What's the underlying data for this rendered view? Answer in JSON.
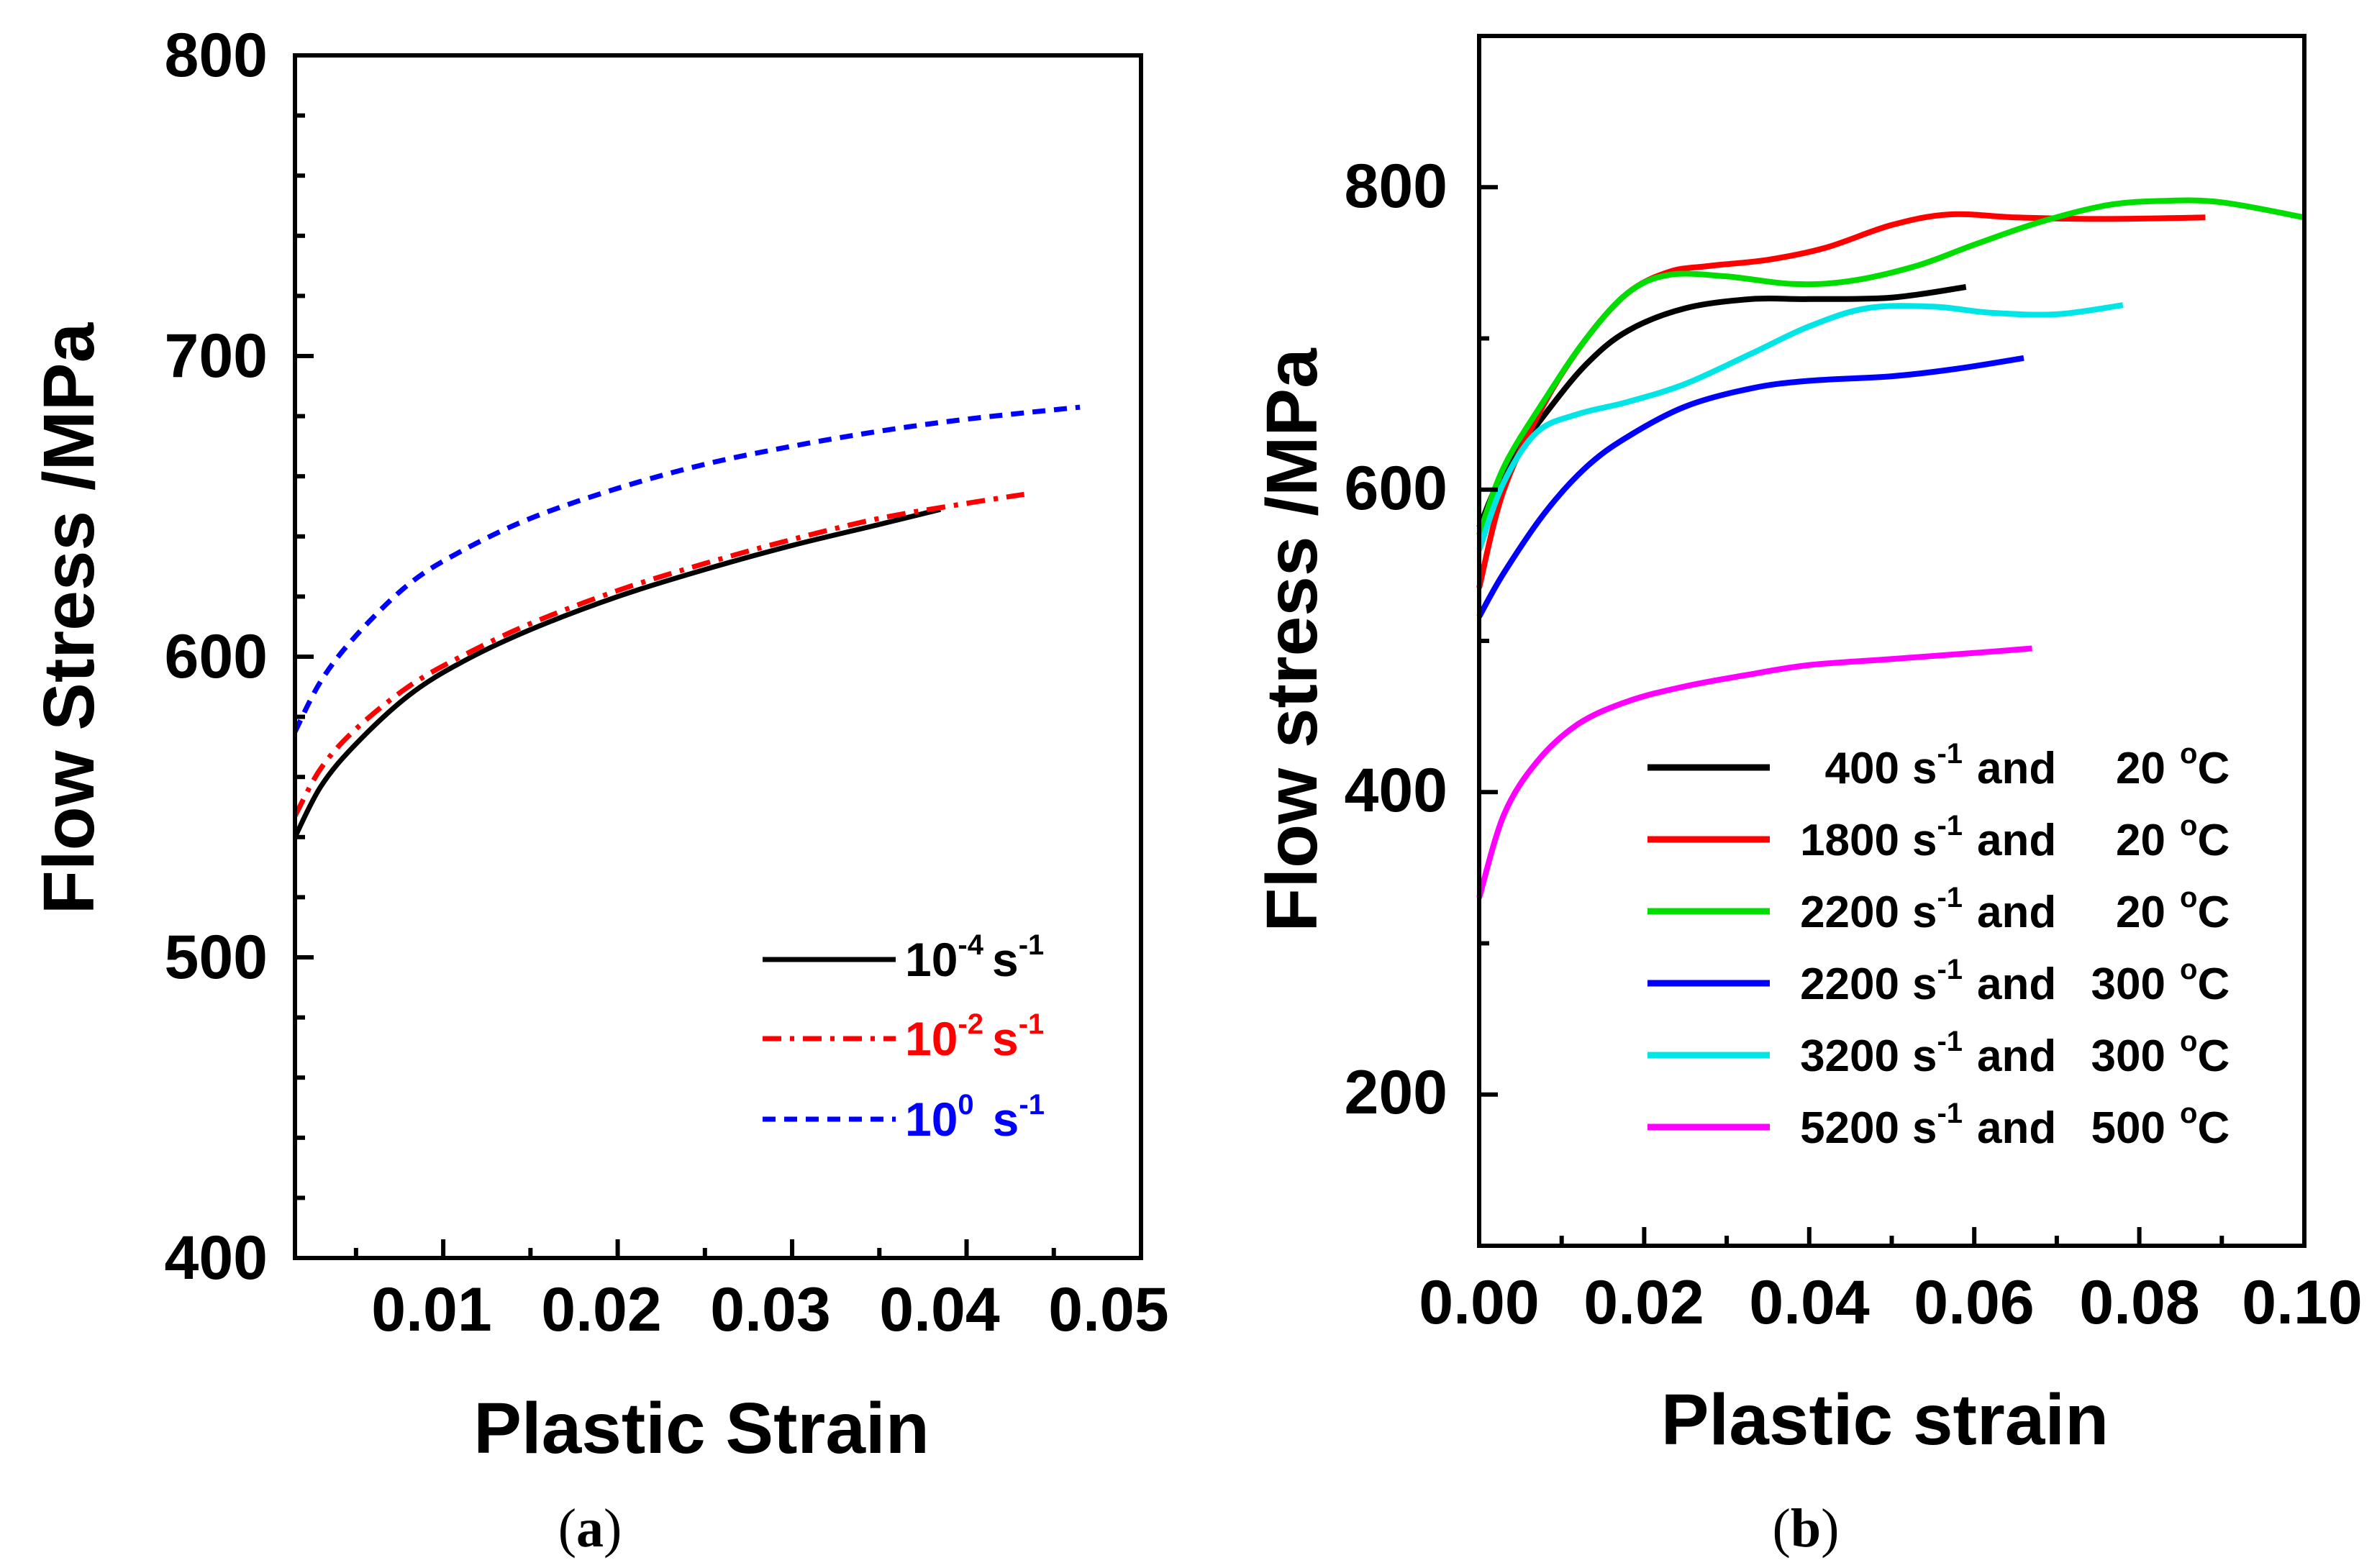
{
  "chart_data": [
    {
      "panel": "a",
      "type": "line",
      "caption": {
        "open": "(",
        "letter": "a",
        "close": ")"
      },
      "xlabel": "Plastic Strain",
      "ylabel": "Flow Stress  /MPa",
      "xlim": [
        0.0015,
        0.05
      ],
      "ylim": [
        400,
        800
      ],
      "xticks": [
        0.01,
        0.02,
        0.03,
        0.04,
        0.05
      ],
      "xtick_labels": [
        "0.01",
        "0.02",
        "0.03",
        "0.04",
        "0.05"
      ],
      "yticks": [
        400,
        500,
        600,
        700,
        800
      ],
      "ytick_labels": [
        "400",
        "500",
        "600",
        "700",
        "800"
      ],
      "legend_position": "bottom-right",
      "series": [
        {
          "name": "10-4 s-1",
          "label_base": "10",
          "label_exp": "-4",
          "label_unit": "s",
          "label_unit_exp": "-1",
          "color": "#000000",
          "dash": "solid",
          "x": [
            0.0015,
            0.003,
            0.005,
            0.008,
            0.011,
            0.015,
            0.02,
            0.025,
            0.03,
            0.035,
            0.0385
          ],
          "y": [
            540,
            557,
            571,
            587,
            598,
            609,
            620,
            629,
            637,
            644,
            649
          ]
        },
        {
          "name": "10-2 s-1",
          "label_base": "10",
          "label_exp": "-2",
          "label_unit": "s",
          "label_unit_exp": "-1",
          "color": "#ff0000",
          "dash": "dashdot",
          "x": [
            0.0015,
            0.003,
            0.005,
            0.008,
            0.011,
            0.015,
            0.02,
            0.025,
            0.03,
            0.035,
            0.04,
            0.0433
          ],
          "y": [
            547,
            563,
            576,
            590,
            600,
            611,
            622,
            631,
            639,
            646,
            651,
            654
          ]
        },
        {
          "name": "100 s-1",
          "label_base": "10",
          "label_exp": "0",
          "label_unit": "s",
          "label_unit_exp": "-1",
          "color": "#0000ff",
          "dash": "dashed",
          "x": [
            0.0015,
            0.003,
            0.005,
            0.008,
            0.011,
            0.015,
            0.02,
            0.025,
            0.03,
            0.035,
            0.04,
            0.0465
          ],
          "y": [
            575,
            592,
            607,
            624,
            635,
            646,
            656,
            664,
            670,
            675,
            679,
            683
          ]
        }
      ]
    },
    {
      "panel": "b",
      "type": "line",
      "caption": {
        "open": "(",
        "letter": "b",
        "close": ")"
      },
      "xlabel": "Plastic strain",
      "ylabel": "Flow stress  /MPa",
      "xlim": [
        0.0,
        0.1
      ],
      "ylim": [
        100,
        900
      ],
      "xticks": [
        0.0,
        0.02,
        0.04,
        0.06,
        0.08,
        0.1
      ],
      "xtick_labels": [
        "0.00",
        "0.02",
        "0.04",
        "0.06",
        "0.08",
        "0.10"
      ],
      "yticks": [
        200,
        400,
        600,
        800
      ],
      "ytick_labels": [
        "200",
        "400",
        "600",
        "800"
      ],
      "legend_position": "bottom-right",
      "series": [
        {
          "rate": "400",
          "temp": "20",
          "mid": "and",
          "unit": "s",
          "unit_exp": "-1",
          "deg": "o",
          "temp_unit": "C",
          "color": "#000000",
          "x": [
            0.0,
            0.003,
            0.008,
            0.013,
            0.018,
            0.025,
            0.033,
            0.04,
            0.05,
            0.059
          ],
          "y": [
            575,
            612,
            650,
            683,
            705,
            720,
            726,
            726,
            727,
            734
          ]
        },
        {
          "rate": "1800",
          "temp": "20",
          "mid": "and",
          "unit": "s",
          "unit_exp": "-1",
          "deg": "o",
          "temp_unit": "C",
          "color": "#ff0000",
          "x": [
            0.0,
            0.003,
            0.008,
            0.013,
            0.018,
            0.023,
            0.028,
            0.035,
            0.042,
            0.05,
            0.057,
            0.065,
            0.075,
            0.088
          ],
          "y": [
            535,
            600,
            658,
            700,
            730,
            744,
            748,
            752,
            760,
            775,
            782,
            780,
            779,
            780
          ]
        },
        {
          "rate": "2200",
          "temp": "20",
          "mid": "and",
          "unit": "s",
          "unit_exp": "-1",
          "deg": "o",
          "temp_unit": "C",
          "color": "#00dd00",
          "x": [
            0.0,
            0.003,
            0.008,
            0.013,
            0.018,
            0.023,
            0.03,
            0.038,
            0.045,
            0.053,
            0.06,
            0.068,
            0.076,
            0.083,
            0.09,
            0.1
          ],
          "y": [
            570,
            615,
            660,
            700,
            730,
            742,
            741,
            736,
            738,
            748,
            762,
            777,
            788,
            791,
            790,
            780
          ]
        },
        {
          "rate": "2200",
          "temp": "300",
          "mid": "and",
          "unit": "s",
          "unit_exp": "-1",
          "deg": "o",
          "temp_unit": "C",
          "color": "#0000ff",
          "x": [
            0.0,
            0.003,
            0.008,
            0.013,
            0.018,
            0.025,
            0.033,
            0.04,
            0.05,
            0.058,
            0.066
          ],
          "y": [
            516,
            545,
            585,
            615,
            635,
            655,
            667,
            672,
            675,
            680,
            687
          ]
        },
        {
          "rate": "3200",
          "temp": "300",
          "mid": "and",
          "unit": "s",
          "unit_exp": "-1",
          "deg": "o",
          "temp_unit": "C",
          "color": "#00e6e6",
          "x": [
            0.0,
            0.003,
            0.007,
            0.012,
            0.018,
            0.025,
            0.033,
            0.04,
            0.047,
            0.055,
            0.062,
            0.07,
            0.078
          ],
          "y": [
            560,
            605,
            638,
            650,
            658,
            670,
            690,
            708,
            720,
            721,
            717,
            716,
            722
          ]
        },
        {
          "rate": "5200",
          "temp": "500",
          "mid": "and",
          "unit": "s",
          "unit_exp": "-1",
          "deg": "o",
          "temp_unit": "C",
          "color": "#ff00ff",
          "x": [
            0.0,
            0.003,
            0.007,
            0.012,
            0.018,
            0.025,
            0.033,
            0.04,
            0.05,
            0.06,
            0.067
          ],
          "y": [
            330,
            385,
            420,
            445,
            460,
            470,
            478,
            484,
            488,
            492,
            495
          ]
        }
      ]
    }
  ]
}
